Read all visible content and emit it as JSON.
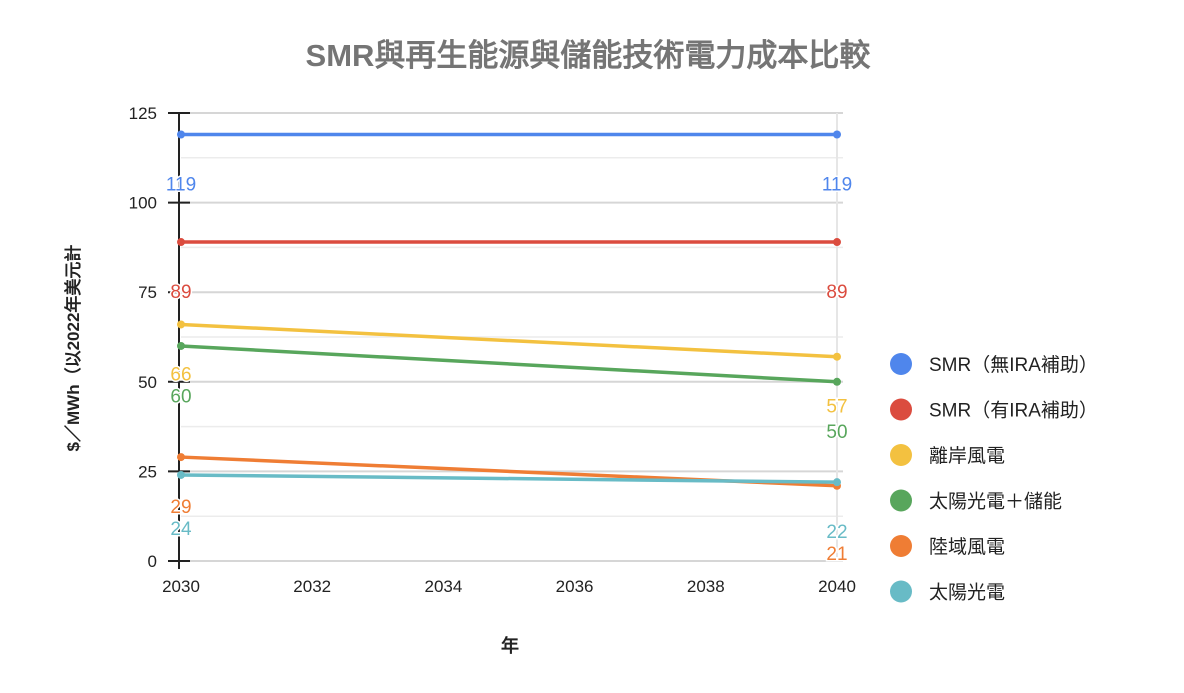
{
  "chart_data": {
    "type": "line",
    "title": "SMR與再生能源與儲能技術電力成本比較",
    "xlabel": "年",
    "ylabel": "$／MWh（以2022年美元計",
    "x": [
      2030,
      2040
    ],
    "xticks": [
      "2030",
      "2032",
      "2034",
      "2036",
      "2038",
      "2040"
    ],
    "yticks": [
      "0",
      "25",
      "50",
      "75",
      "100",
      "125"
    ],
    "xlim": [
      2030,
      2040
    ],
    "ylim": [
      0,
      125
    ],
    "grid": true,
    "legend_position": "right",
    "data_labels": true,
    "series": [
      {
        "name": "SMR（無IRA補助）",
        "color": "#4f86ec",
        "values": [
          119,
          119
        ]
      },
      {
        "name": "SMR（有IRA補助）",
        "color": "#db4c3f",
        "values": [
          89,
          89
        ]
      },
      {
        "name": "離岸風電",
        "color": "#f3c140",
        "values": [
          66,
          57
        ]
      },
      {
        "name": "太陽光電＋儲能",
        "color": "#58a65c",
        "values": [
          60,
          50
        ]
      },
      {
        "name": "陸域風電",
        "color": "#ef7d34",
        "values": [
          29,
          21
        ]
      },
      {
        "name": "太陽光電",
        "color": "#68bbc6",
        "values": [
          24,
          22
        ]
      }
    ]
  }
}
